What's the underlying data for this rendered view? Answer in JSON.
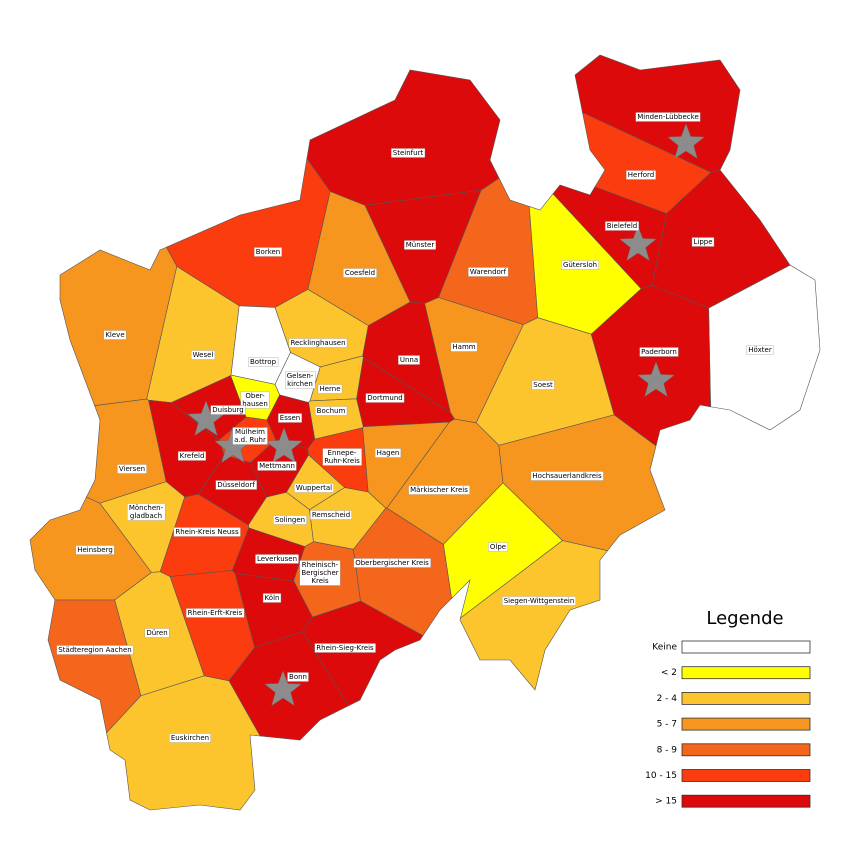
{
  "legend": {
    "title": "Legende",
    "classes": [
      {
        "label": "Keine",
        "color": "#ffffff"
      },
      {
        "label": "< 2",
        "color": "#ffff00"
      },
      {
        "label": "2 - 4",
        "color": "#fdc52d"
      },
      {
        "label": "5 - 7",
        "color": "#f7961e"
      },
      {
        "label": "8 - 9",
        "color": "#f4661c"
      },
      {
        "label": "10 - 15",
        "color": "#fa3c0f"
      },
      {
        "label": "> 15",
        "color": "#dc0a0a"
      }
    ]
  },
  "regions": [
    {
      "name": "Steinfurt",
      "class": 6
    },
    {
      "name": "Minden-Lübbecke",
      "class": 6
    },
    {
      "name": "Herford",
      "class": 5
    },
    {
      "name": "Borken",
      "class": 5
    },
    {
      "name": "Münster",
      "class": 6
    },
    {
      "name": "Coesfeld",
      "class": 3
    },
    {
      "name": "Warendorf",
      "class": 4
    },
    {
      "name": "Gütersloh",
      "class": 1
    },
    {
      "name": "Bielefeld",
      "class": 6
    },
    {
      "name": "Lippe",
      "class": 6
    },
    {
      "name": "Höxter",
      "class": 0
    },
    {
      "name": "Kleve",
      "class": 3
    },
    {
      "name": "Wesel",
      "class": 2
    },
    {
      "name": "Recklinghausen",
      "class": 2
    },
    {
      "name": "Bottrop",
      "class": 0
    },
    {
      "name": "Gelsen-\nkirchen",
      "class": 0
    },
    {
      "name": "Unna",
      "class": 6
    },
    {
      "name": "Hamm",
      "class": 3
    },
    {
      "name": "Soest",
      "class": 2
    },
    {
      "name": "Paderborn",
      "class": 6
    },
    {
      "name": "Ober-\nhausen",
      "class": 1
    },
    {
      "name": "Herne",
      "class": 2
    },
    {
      "name": "Bochum",
      "class": 2
    },
    {
      "name": "Dortmund",
      "class": 6
    },
    {
      "name": "Duisburg",
      "class": 6
    },
    {
      "name": "Essen",
      "class": 6
    },
    {
      "name": "Mülheim\na.d. Ruhr",
      "class": 5
    },
    {
      "name": "Krefeld",
      "class": 6
    },
    {
      "name": "Mettmann",
      "class": 6
    },
    {
      "name": "Ennepe-\nRuhr-Kreis",
      "class": 5
    },
    {
      "name": "Hagen",
      "class": 3
    },
    {
      "name": "Viersen",
      "class": 3
    },
    {
      "name": "Düsseldorf",
      "class": 6
    },
    {
      "name": "Wuppertal",
      "class": 2
    },
    {
      "name": "Märkischer Kreis",
      "class": 3
    },
    {
      "name": "Hochsauerlandkreis",
      "class": 3
    },
    {
      "name": "Mönchen-\ngladbach",
      "class": 2
    },
    {
      "name": "Solingen",
      "class": 2
    },
    {
      "name": "Remscheid",
      "class": 2
    },
    {
      "name": "Rhein-Kreis Neuss",
      "class": 5
    },
    {
      "name": "Heinsberg",
      "class": 3
    },
    {
      "name": "Olpe",
      "class": 1
    },
    {
      "name": "Leverkusen",
      "class": 6
    },
    {
      "name": "Rheinisch-\nBergischer\nKreis",
      "class": 4
    },
    {
      "name": "Oberbergischer Kreis",
      "class": 4
    },
    {
      "name": "Siegen-Wittgenstein",
      "class": 2
    },
    {
      "name": "Köln",
      "class": 6
    },
    {
      "name": "Rhein-Erft-Kreis",
      "class": 5
    },
    {
      "name": "Düren",
      "class": 2
    },
    {
      "name": "Städteregion Aachen",
      "class": 4
    },
    {
      "name": "Rhein-Sieg-Kreis",
      "class": 6
    },
    {
      "name": "Bonn",
      "class": 6
    },
    {
      "name": "Euskirchen",
      "class": 2
    }
  ]
}
